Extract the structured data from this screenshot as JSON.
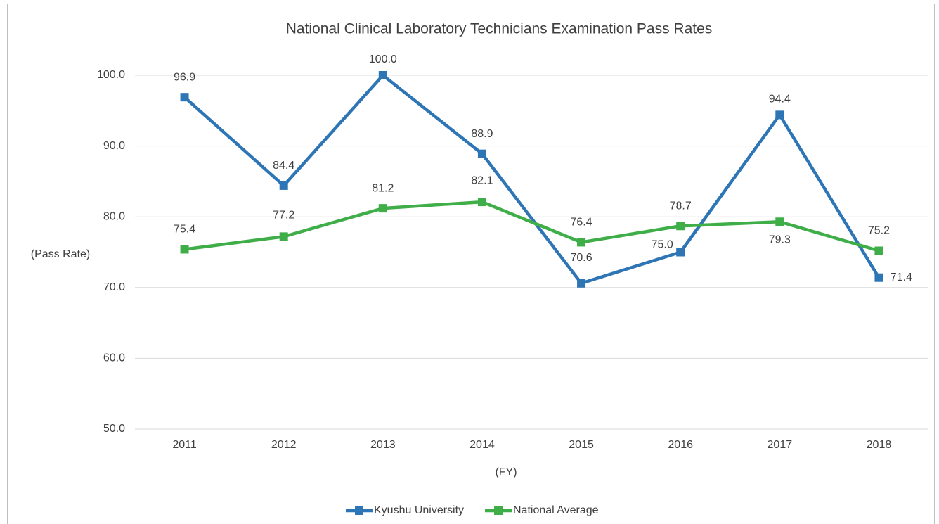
{
  "chart_data": {
    "type": "line",
    "title": "National Clinical Laboratory Technicians Examination Pass Rates",
    "x_label": "(FY)",
    "y_label": "(Pass Rate)",
    "categories": [
      "2011",
      "2012",
      "2013",
      "2014",
      "2015",
      "2016",
      "2017",
      "2018"
    ],
    "series": [
      {
        "name": "Kyushu University",
        "color": "#2e75b6",
        "values": [
          96.9,
          84.4,
          100,
          88.9,
          70.6,
          75,
          94.4,
          71.4
        ],
        "value_labels": [
          "96.9",
          "84.4",
          "100.0",
          "88.9",
          "70.6",
          "75.0",
          "94.4",
          "71.4"
        ]
      },
      {
        "name": "National Average",
        "color": "#3fae49",
        "values": [
          75.4,
          77.2,
          81.2,
          82.1,
          76.4,
          78.7,
          79.3,
          75.2
        ],
        "value_labels": [
          "75.4",
          "77.2",
          "81.2",
          "82.1",
          "76.4",
          "78.7",
          "79.3",
          "75.2"
        ]
      }
    ],
    "ylim": [
      50,
      100
    ],
    "yticks": [
      {
        "value": 50,
        "label": "50.0"
      },
      {
        "value": 60,
        "label": "60.0"
      },
      {
        "value": 70,
        "label": "70.0"
      },
      {
        "value": 80,
        "label": "80.0"
      },
      {
        "value": 90,
        "label": "90.0"
      },
      {
        "value": 100,
        "label": "100.0"
      }
    ],
    "grid": true,
    "legend": "bottom"
  }
}
